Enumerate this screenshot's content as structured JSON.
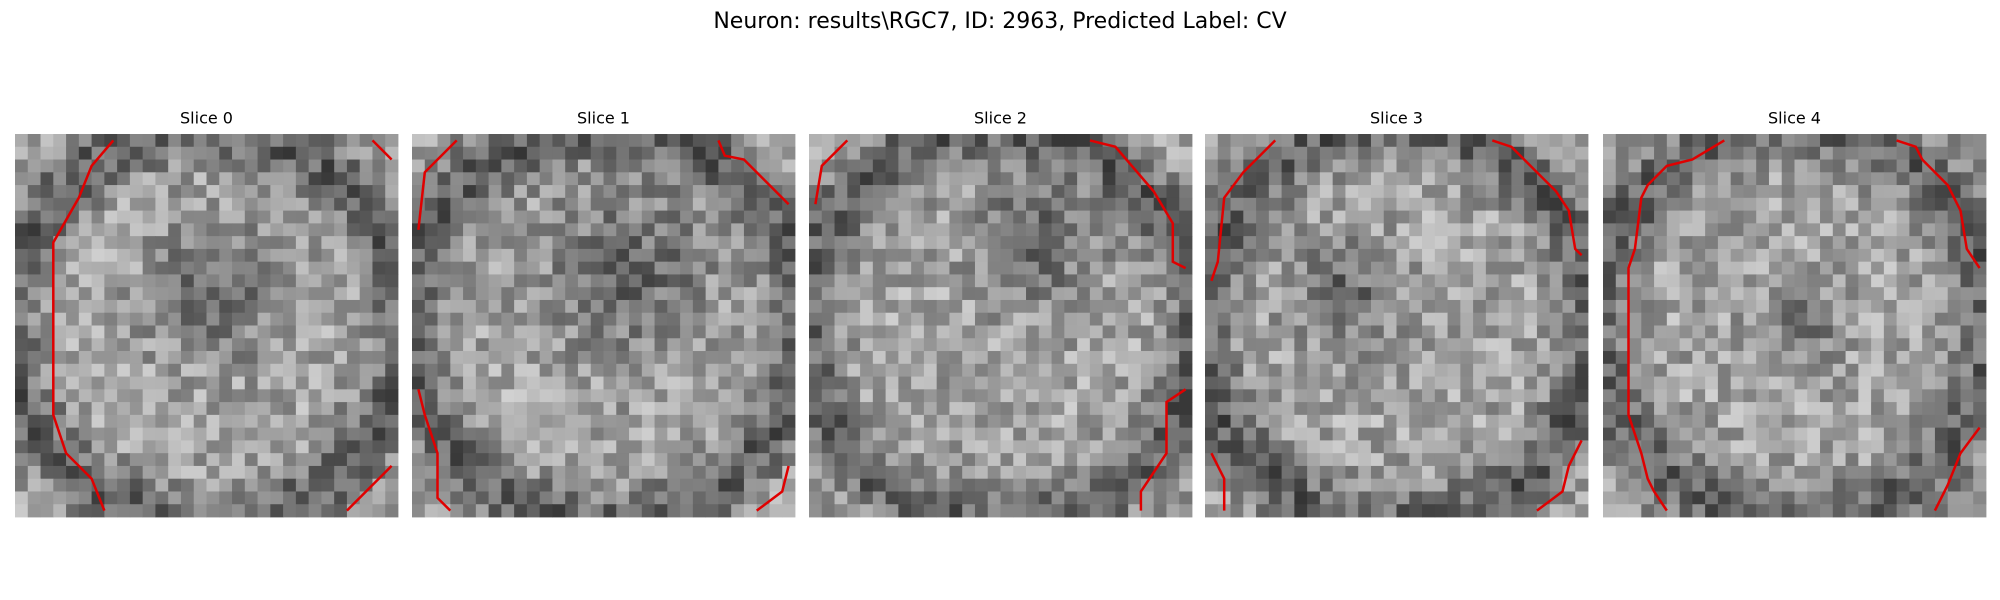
{
  "figure": {
    "title": "Neuron: results\\RGC7, ID: 2963, Predicted Label: CV",
    "panels": [
      {
        "title": "Slice 0"
      },
      {
        "title": "Slice 1"
      },
      {
        "title": "Slice 2"
      },
      {
        "title": "Slice 3"
      },
      {
        "title": "Slice 4"
      }
    ]
  }
}
